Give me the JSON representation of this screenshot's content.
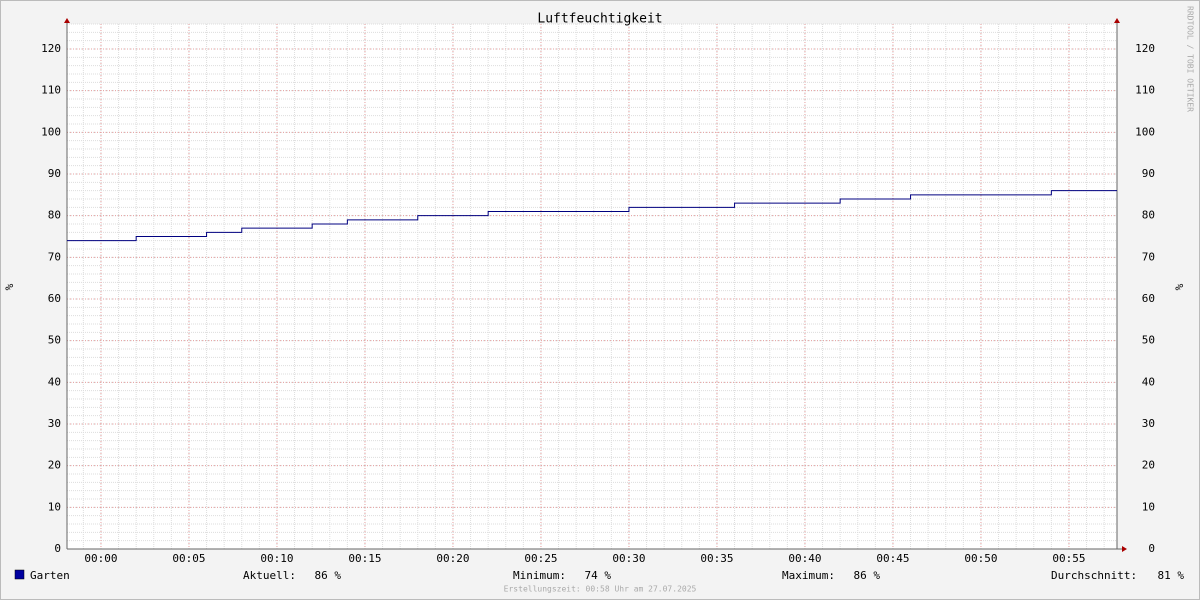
{
  "chart_data": {
    "type": "line",
    "step": "post",
    "title": "Luftfeuchtigkeit",
    "y_label": "%",
    "watermark": "RRDTOOL / TOBI OETIKER",
    "x": [
      -1.93,
      2,
      6,
      8,
      12,
      14,
      18,
      22,
      30,
      36,
      42,
      46,
      54
    ],
    "series": [
      {
        "name": "Garten",
        "color": "#000080",
        "legend_color": "#0000a0",
        "values": [
          74,
          75,
          76,
          77,
          78,
          79,
          80,
          81,
          82,
          83,
          84,
          85,
          86
        ]
      }
    ],
    "xlim": [
      -1.93,
      57.73
    ],
    "xticks": [
      {
        "value": 0,
        "label": "00:00"
      },
      {
        "value": 5,
        "label": "00:05"
      },
      {
        "value": 10,
        "label": "00:10"
      },
      {
        "value": 15,
        "label": "00:15"
      },
      {
        "value": 20,
        "label": "00:20"
      },
      {
        "value": 25,
        "label": "00:25"
      },
      {
        "value": 30,
        "label": "00:30"
      },
      {
        "value": 35,
        "label": "00:35"
      },
      {
        "value": 40,
        "label": "00:40"
      },
      {
        "value": 45,
        "label": "00:45"
      },
      {
        "value": 50,
        "label": "00:50"
      },
      {
        "value": 55,
        "label": "00:55"
      }
    ],
    "ylim": [
      0,
      126
    ],
    "yticks": [
      0,
      10,
      20,
      30,
      40,
      50,
      60,
      70,
      80,
      90,
      100,
      110,
      120
    ],
    "x_minor_step": 1,
    "y_minor_step": 2,
    "grid": true,
    "stats": [
      {
        "label": "Aktuell:",
        "text": "86 %"
      },
      {
        "label": "Minimum:",
        "text": "74 %"
      },
      {
        "label": "Maximum:",
        "text": "86 %"
      },
      {
        "label": "Durchschnitt:",
        "text": "81 %"
      }
    ],
    "footer": "Erstellungszeit: 00:58 Uhr am 27.07.2025"
  }
}
